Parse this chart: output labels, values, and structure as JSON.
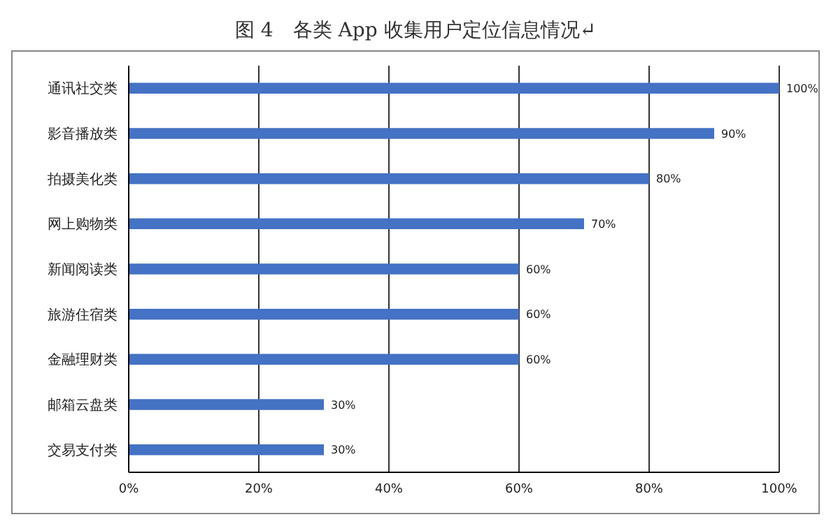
{
  "chart_data": {
    "type": "bar",
    "orientation": "horizontal",
    "title": "图 4　各类 App 收集用户定位信息情况↵",
    "categories": [
      "通讯社交类",
      "影音播放类",
      "拍摄美化类",
      "网上购物类",
      "新闻阅读类",
      "旅游住宿类",
      "金融理财类",
      "邮箱云盘类",
      "交易支付类"
    ],
    "values": [
      100,
      90,
      80,
      70,
      60,
      60,
      60,
      30,
      30
    ],
    "value_labels": [
      "100%",
      "90%",
      "80%",
      "70%",
      "60%",
      "60%",
      "60%",
      "30%",
      "30%"
    ],
    "color": "#4472c4",
    "xlim": [
      0,
      100
    ],
    "xticks": [
      {
        "value": 0,
        "label": "0%"
      },
      {
        "value": 20,
        "label": "20%"
      },
      {
        "value": 40,
        "label": "40%"
      },
      {
        "value": 60,
        "label": "60%"
      },
      {
        "value": 80,
        "label": "80%"
      },
      {
        "value": 100,
        "label": "100%"
      }
    ],
    "grid": "x"
  }
}
